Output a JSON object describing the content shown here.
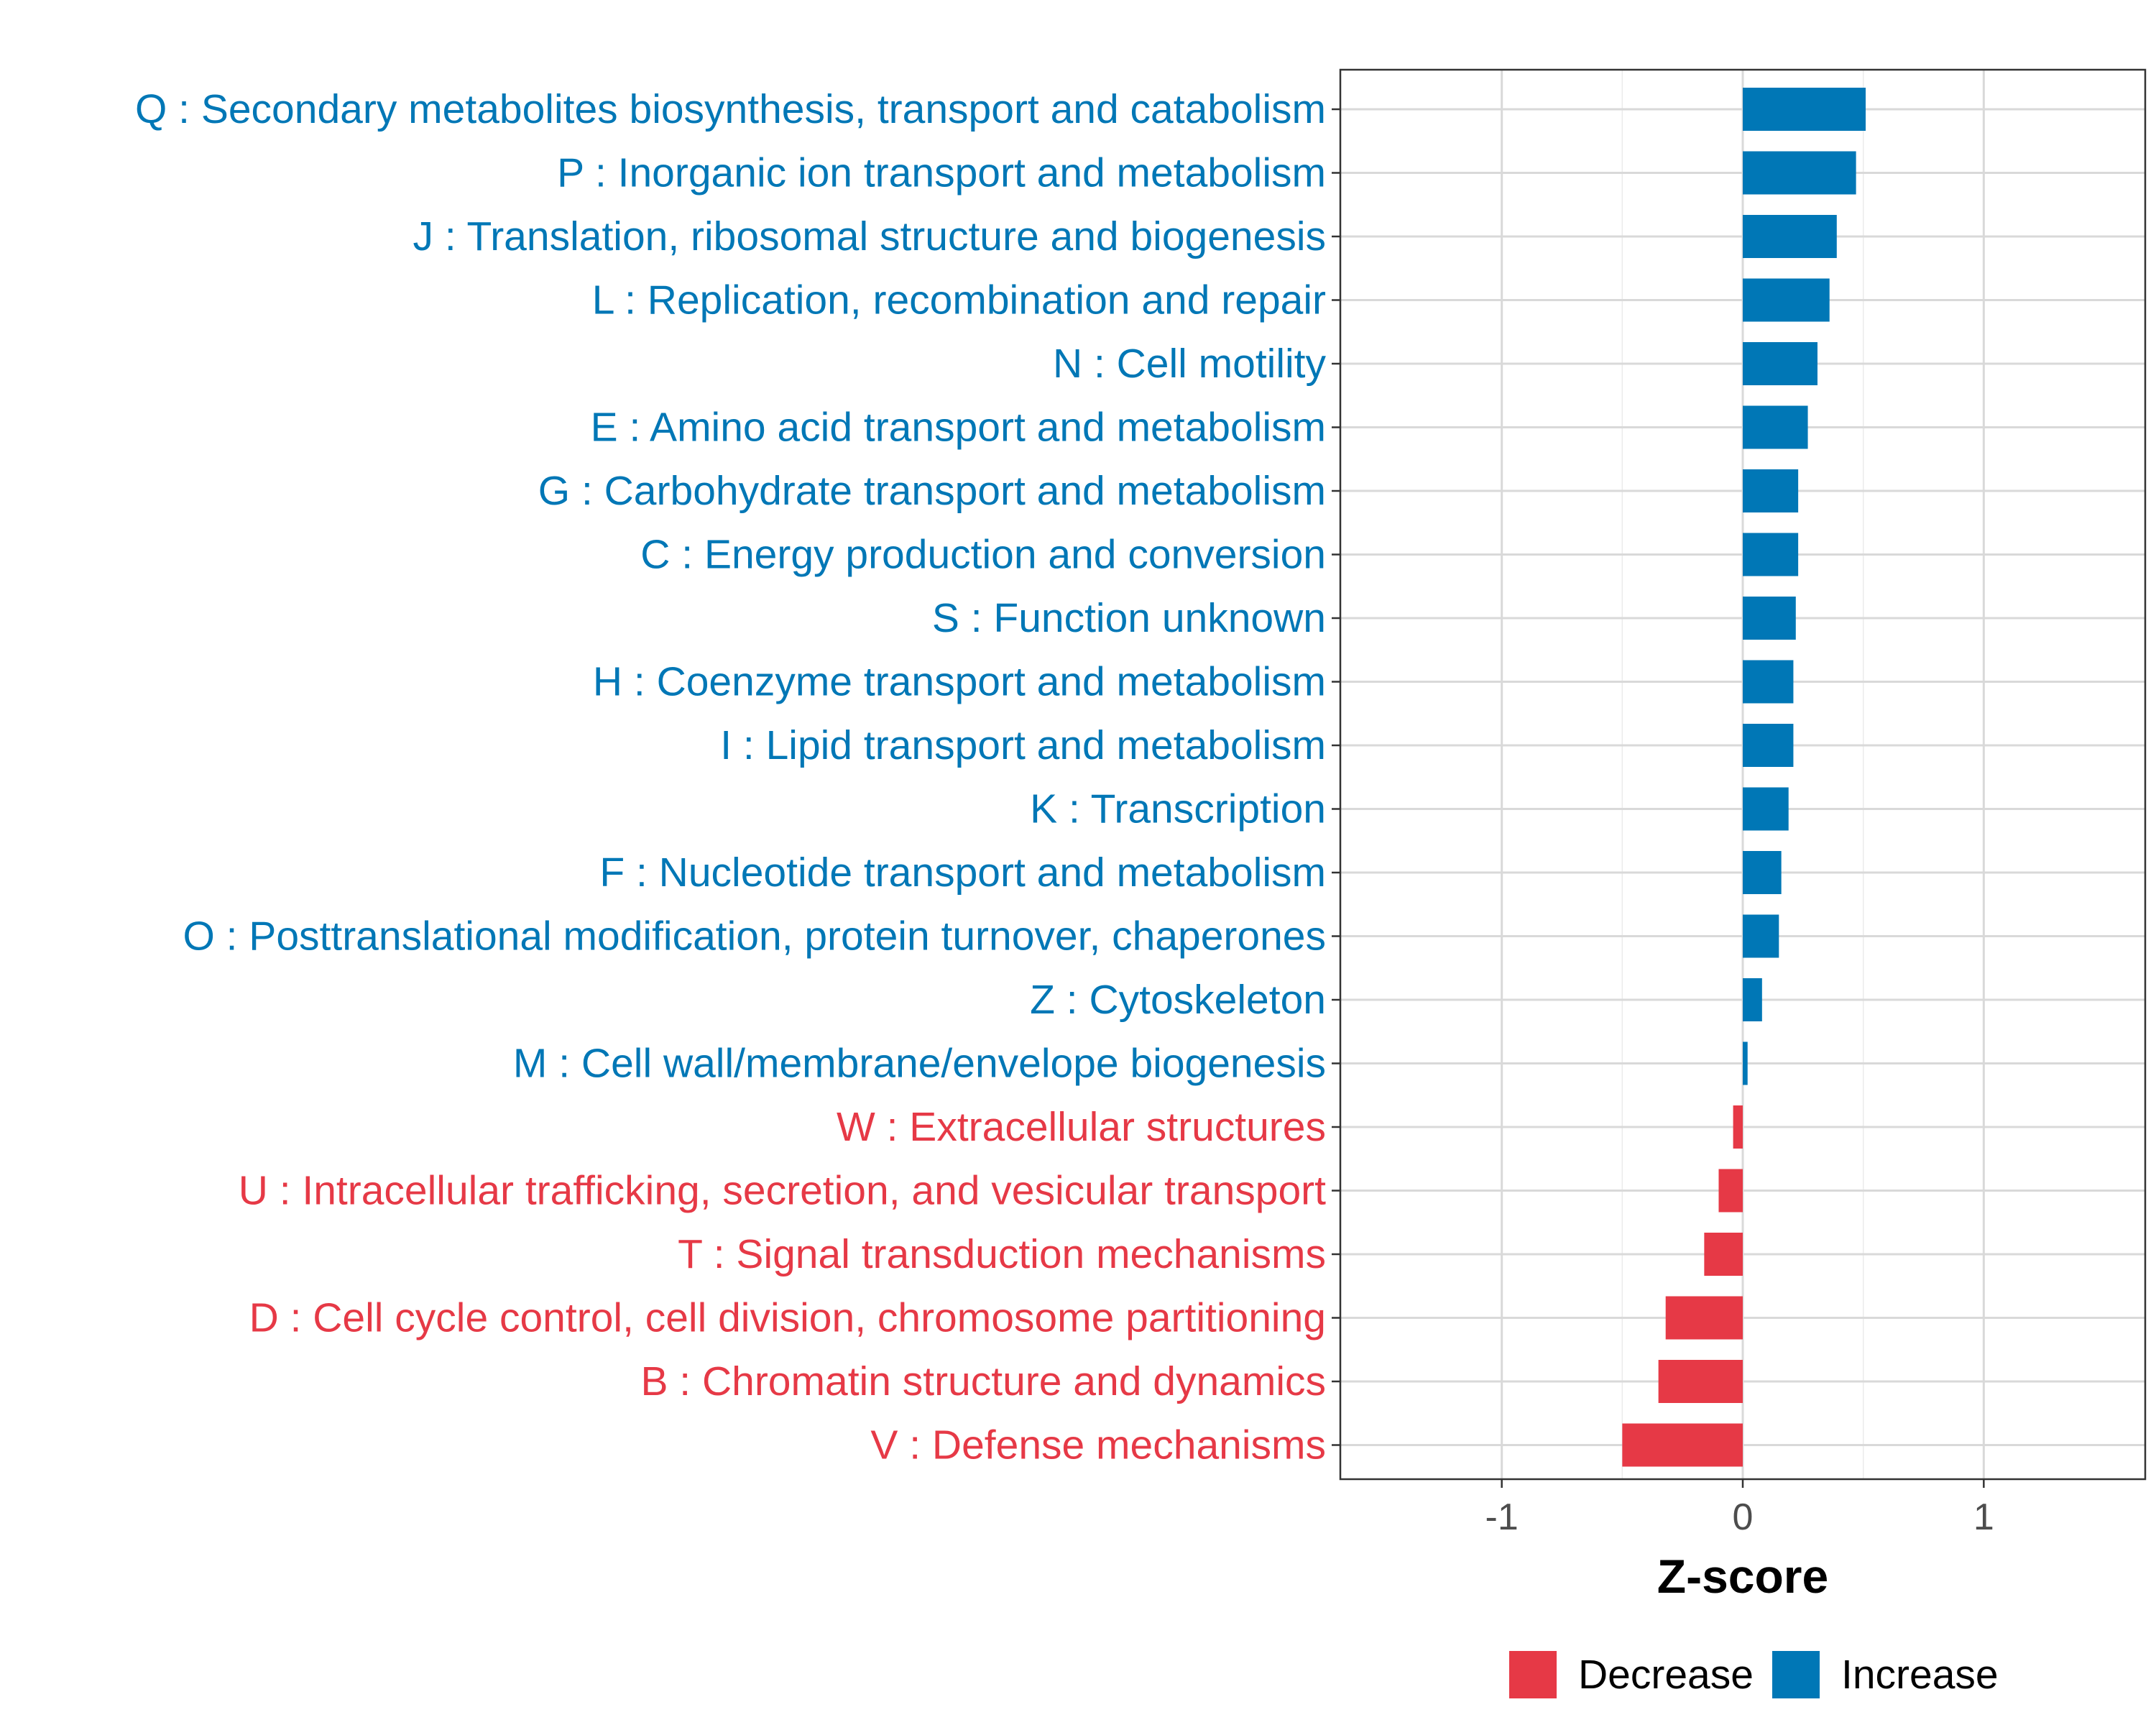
{
  "chart_data": {
    "type": "bar",
    "orientation": "horizontal",
    "xlabel": "Z-score",
    "ylabel": "",
    "xlim": [
      -1.67,
      1.67
    ],
    "xticks": [
      {
        "value": -1,
        "label": "-1"
      },
      {
        "value": 0,
        "label": "0"
      },
      {
        "value": 1,
        "label": "1"
      }
    ],
    "grid": true,
    "legend": {
      "position": "bottom",
      "entries": [
        {
          "key": "decrease",
          "label": "Decrease",
          "color": "#E63946"
        },
        {
          "key": "increase",
          "label": "Increase",
          "color": "#0077B6"
        }
      ]
    },
    "categories": [
      {
        "label": "Q : Secondary metabolites biosynthesis, transport and catabolism",
        "value": 0.51,
        "group": "increase"
      },
      {
        "label": "P : Inorganic ion transport and metabolism",
        "value": 0.47,
        "group": "increase"
      },
      {
        "label": "J : Translation, ribosomal structure and biogenesis",
        "value": 0.39,
        "group": "increase"
      },
      {
        "label": "L : Replication, recombination and repair",
        "value": 0.36,
        "group": "increase"
      },
      {
        "label": "N : Cell motility",
        "value": 0.31,
        "group": "increase"
      },
      {
        "label": "E : Amino acid transport and metabolism",
        "value": 0.27,
        "group": "increase"
      },
      {
        "label": "G : Carbohydrate transport and metabolism",
        "value": 0.23,
        "group": "increase"
      },
      {
        "label": "C : Energy production and conversion",
        "value": 0.23,
        "group": "increase"
      },
      {
        "label": "S : Function unknown",
        "value": 0.22,
        "group": "increase"
      },
      {
        "label": "H : Coenzyme transport and metabolism",
        "value": 0.21,
        "group": "increase"
      },
      {
        "label": "I : Lipid transport and metabolism",
        "value": 0.21,
        "group": "increase"
      },
      {
        "label": "K : Transcription",
        "value": 0.19,
        "group": "increase"
      },
      {
        "label": "F : Nucleotide transport and metabolism",
        "value": 0.16,
        "group": "increase"
      },
      {
        "label": "O : Posttranslational modification, protein turnover, chaperones",
        "value": 0.15,
        "group": "increase"
      },
      {
        "label": "Z : Cytoskeleton",
        "value": 0.08,
        "group": "increase"
      },
      {
        "label": "M : Cell wall/membrane/envelope biogenesis",
        "value": 0.02,
        "group": "increase"
      },
      {
        "label": "W : Extracellular structures",
        "value": -0.04,
        "group": "decrease"
      },
      {
        "label": "U : Intracellular trafficking, secretion, and vesicular transport",
        "value": -0.1,
        "group": "decrease"
      },
      {
        "label": "T : Signal transduction mechanisms",
        "value": -0.16,
        "group": "decrease"
      },
      {
        "label": "D : Cell cycle control, cell division, chromosome partitioning",
        "value": -0.32,
        "group": "decrease"
      },
      {
        "label": "B : Chromatin structure and dynamics",
        "value": -0.35,
        "group": "decrease"
      },
      {
        "label": "V : Defense mechanisms",
        "value": -0.5,
        "group": "decrease"
      }
    ]
  }
}
